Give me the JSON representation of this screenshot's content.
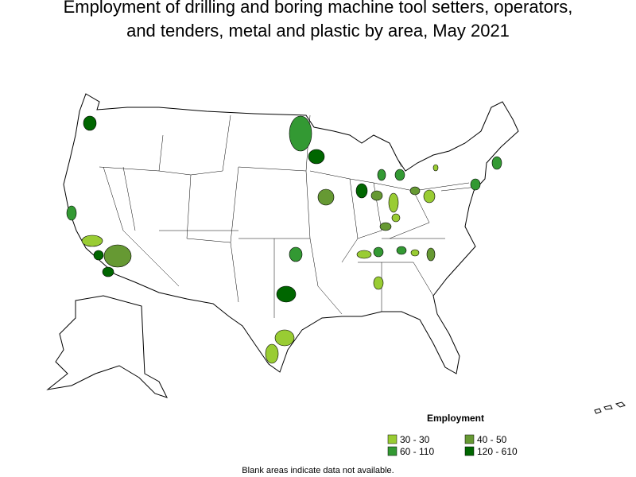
{
  "title": [
    "Employment of drilling and boring machine tool setters, operators,",
    "and tenders, metal and plastic by area, May 2021"
  ],
  "legend": {
    "title": "Employment",
    "items": [
      {
        "label": "30 - 30",
        "color": "#99cc33"
      },
      {
        "label": "40 - 50",
        "color": "#669933"
      },
      {
        "label": "60 - 110",
        "color": "#339933"
      },
      {
        "label": "120 - 610",
        "color": "#006600"
      }
    ]
  },
  "note": "Blank areas indicate data not available."
}
